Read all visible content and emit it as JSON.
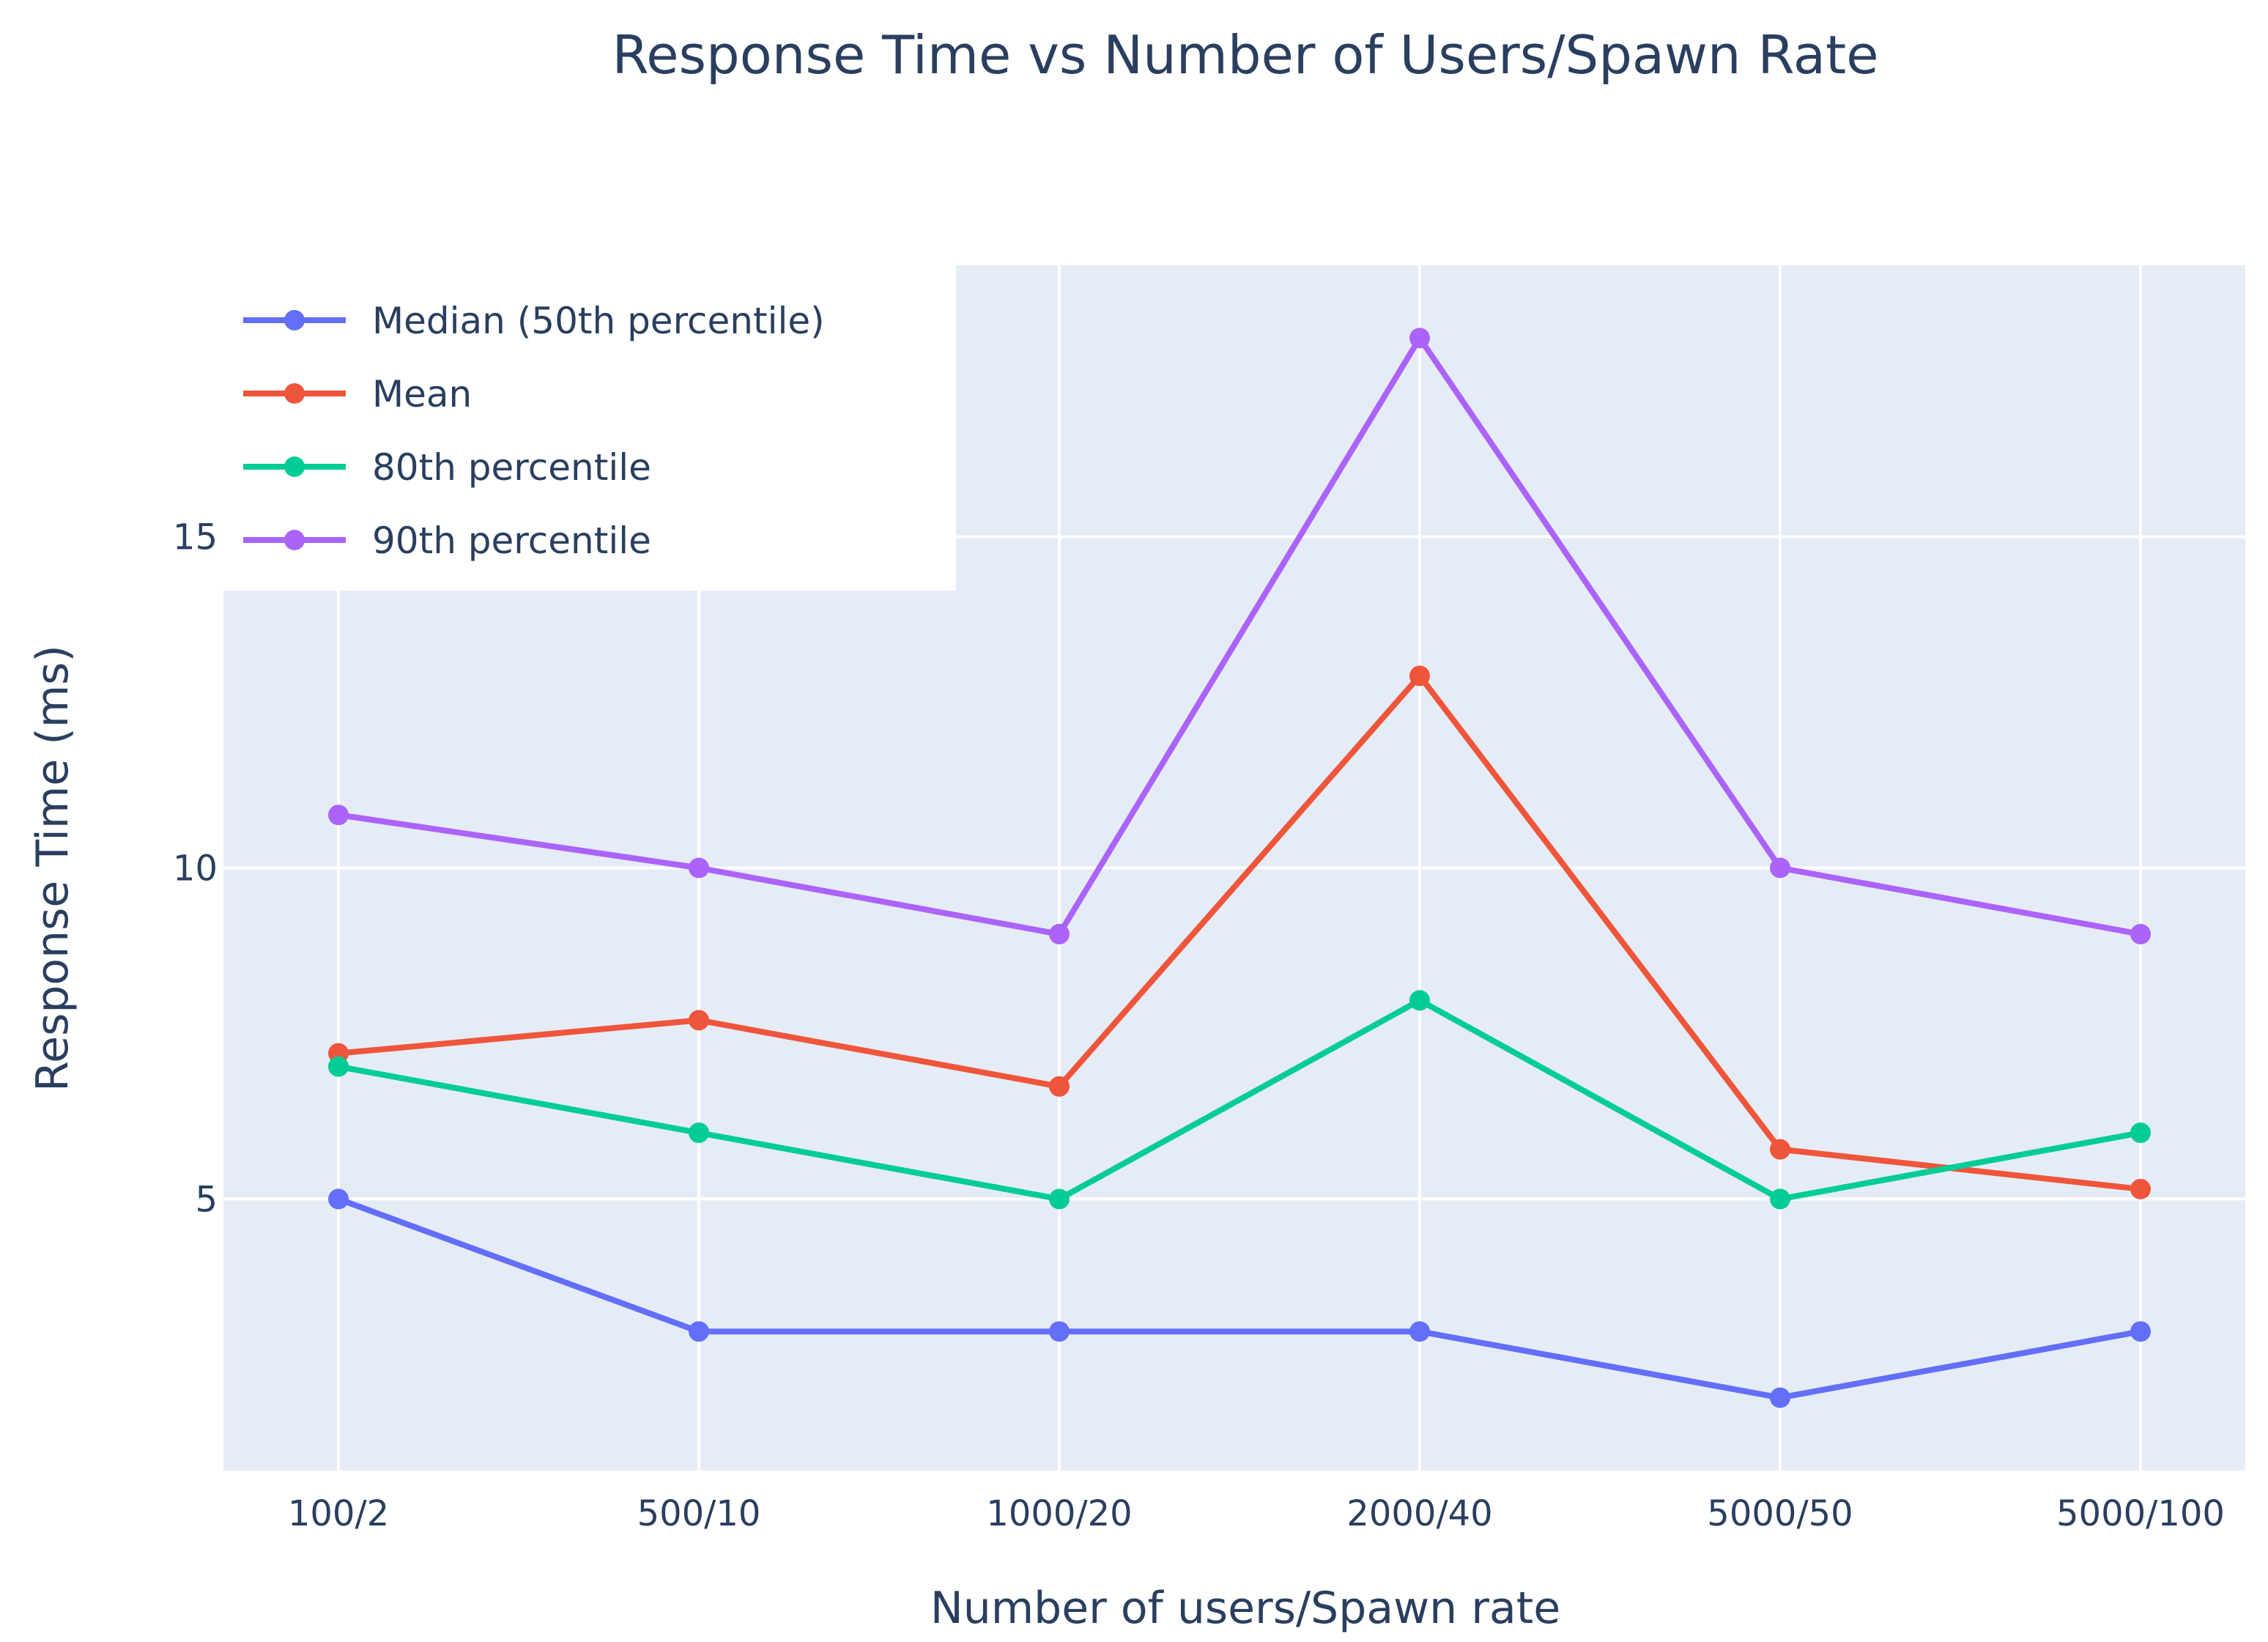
{
  "chart_data": {
    "type": "line",
    "title": "Response Time vs Number of Users/Spawn Rate",
    "xlabel": "Number of users/Spawn rate",
    "ylabel": "Response Time (ms)",
    "categories": [
      "100/2",
      "500/10",
      "1000/20",
      "2000/40",
      "5000/50",
      "5000/100"
    ],
    "ylim": [
      0.9,
      19.1
    ],
    "yticks": [
      5,
      10,
      15
    ],
    "ytick_labels": [
      "5",
      "10",
      "15"
    ],
    "grid": true,
    "legend_position": "top-left",
    "plot_background": "#e5ecf6",
    "series": [
      {
        "name": "Median (50th percentile)",
        "color": "#636efa",
        "values": [
          5,
          3,
          3,
          3,
          2,
          3
        ]
      },
      {
        "name": "Mean",
        "color": "#ef553b",
        "values": [
          7.2,
          7.7,
          6.7,
          12.9,
          5.75,
          5.15
        ]
      },
      {
        "name": "80th percentile",
        "color": "#00cc96",
        "values": [
          7,
          6,
          5,
          8,
          5,
          6
        ]
      },
      {
        "name": "90th percentile",
        "color": "#ab63fa",
        "values": [
          10.8,
          10,
          9,
          18,
          10,
          9
        ]
      }
    ]
  }
}
